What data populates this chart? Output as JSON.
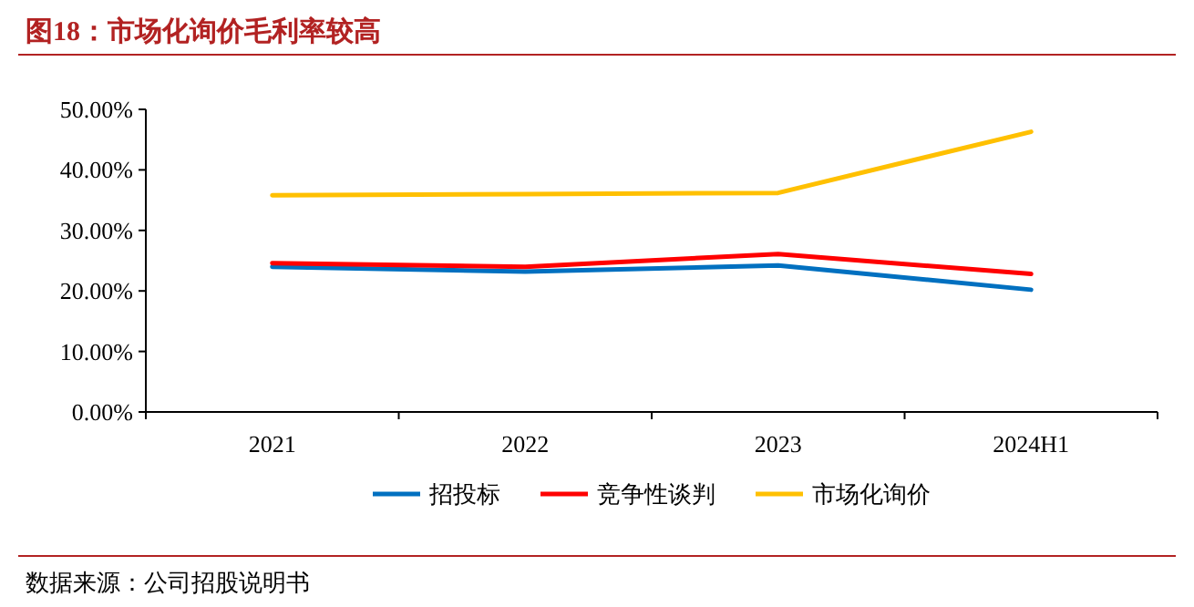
{
  "chart_data": {
    "type": "line",
    "title": "图18：市场化询价毛利率较高",
    "annotations": [
      "数据来源：公司招股说明书"
    ],
    "categories": [
      "2021",
      "2022",
      "2023",
      "2024H1"
    ],
    "series": [
      {
        "name": "招投标",
        "color": "#0070c0",
        "values": [
          24.0,
          23.2,
          24.2,
          20.2
        ]
      },
      {
        "name": "竞争性谈判",
        "color": "#ff0000",
        "values": [
          24.6,
          24.0,
          26.1,
          22.8
        ]
      },
      {
        "name": "市场化询价",
        "color": "#ffc000",
        "values": [
          35.8,
          36.0,
          36.2,
          46.3
        ]
      }
    ],
    "ylim": [
      0,
      50
    ],
    "yticks": [
      {
        "value": 0,
        "label": "0.00%"
      },
      {
        "value": 10,
        "label": "10.00%"
      },
      {
        "value": 20,
        "label": "20.00%"
      },
      {
        "value": 30,
        "label": "30.00%"
      },
      {
        "value": 40,
        "label": "40.00%"
      },
      {
        "value": 50,
        "label": "50.00%"
      }
    ],
    "grid": false,
    "legend": "bottom",
    "marker": "none",
    "line_style": "solid"
  }
}
